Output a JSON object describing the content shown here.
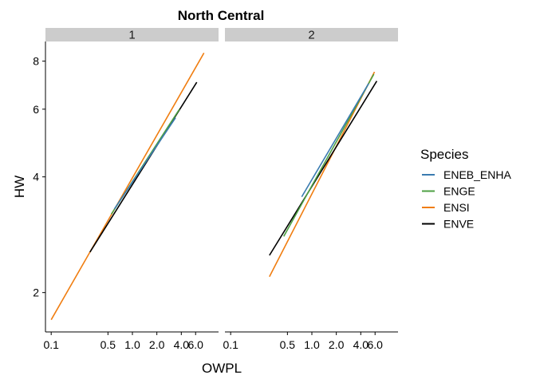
{
  "chart_data": {
    "type": "line",
    "title": "North Central",
    "xlabel": "OWPL",
    "ylabel": "HW",
    "x_scale": "log",
    "y_scale": "log",
    "xlim": [
      0.085,
      11.5
    ],
    "ylim": [
      1.58,
      9.0
    ],
    "x_ticks": [
      0.1,
      0.5,
      1.0,
      2.0,
      4.0,
      6.0
    ],
    "x_tick_labels": [
      "0.1",
      "0.5",
      "1.0",
      "2.0",
      "4.0",
      "6.0"
    ],
    "y_ticks": [
      2,
      4,
      6,
      8
    ],
    "y_tick_labels": [
      "2",
      "4",
      "6",
      "8"
    ],
    "grid": false,
    "legend": {
      "title": "Species",
      "position": "right"
    },
    "species": [
      {
        "name": "ENEB_ENHA",
        "color": "#3a7bb0"
      },
      {
        "name": "ENGE",
        "color": "#4ea043"
      },
      {
        "name": "ENSI",
        "color": "#f07d10"
      },
      {
        "name": "ENVE",
        "color": "#000000"
      }
    ],
    "panels": [
      {
        "label": "1",
        "series": [
          {
            "name": "ENSI",
            "x": [
              0.1,
              7.6
            ],
            "y": [
              1.7,
              8.4
            ]
          },
          {
            "name": "ENVE",
            "x": [
              0.3,
              6.2
            ],
            "y": [
              2.55,
              7.05
            ]
          },
          {
            "name": "ENGE",
            "x": [
              0.55,
              3.8
            ],
            "y": [
              3.2,
              6.0
            ]
          },
          {
            "name": "ENEB_ENHA",
            "x": [
              0.6,
              3.4
            ],
            "y": [
              3.3,
              5.7
            ]
          }
        ]
      },
      {
        "label": "2",
        "series": [
          {
            "name": "ENSI",
            "x": [
              0.3,
              5.9
            ],
            "y": [
              2.2,
              7.5
            ]
          },
          {
            "name": "ENVE",
            "x": [
              0.3,
              6.3
            ],
            "y": [
              2.5,
              7.1
            ]
          },
          {
            "name": "ENGE",
            "x": [
              0.45,
              5.8
            ],
            "y": [
              2.8,
              7.4
            ]
          },
          {
            "name": "ENEB_ENHA",
            "x": [
              0.75,
              5.0
            ],
            "y": [
              3.55,
              7.0
            ]
          }
        ]
      }
    ]
  }
}
